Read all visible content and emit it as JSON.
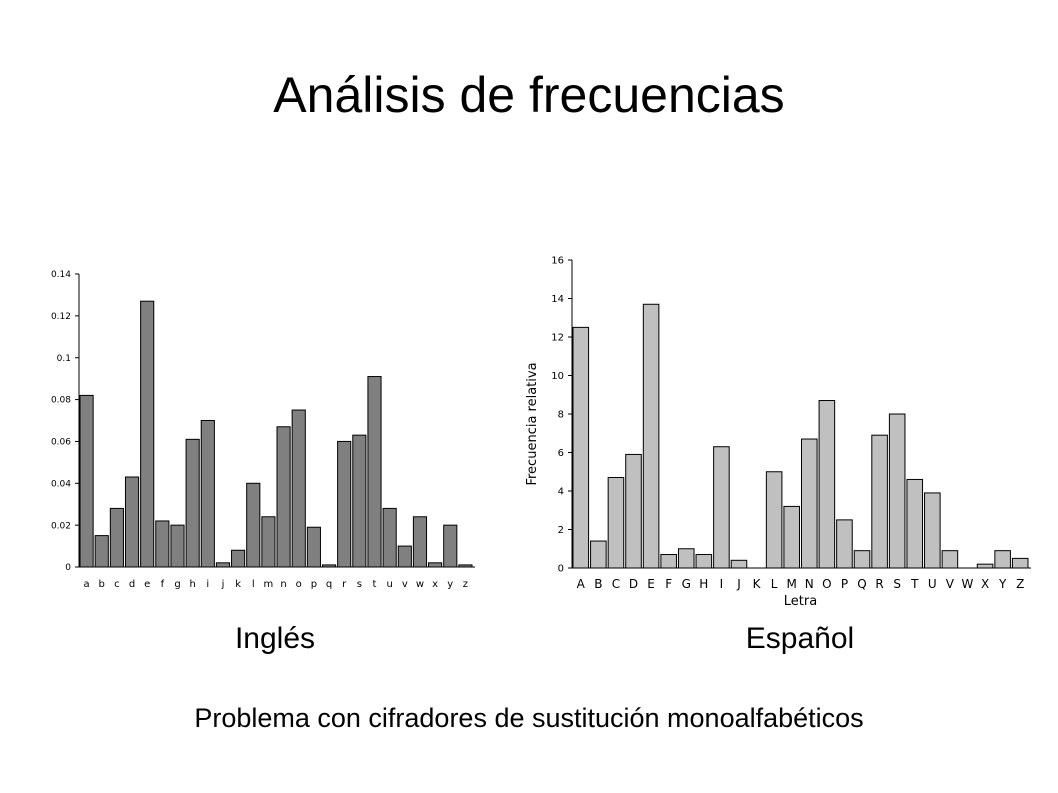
{
  "slide": {
    "title": "Análisis de frecuencias",
    "subtitle": "Problema con cifradores de sustitución monoalfabéticos"
  },
  "chart_data": [
    {
      "type": "bar",
      "caption": "Inglés",
      "xlabel": "",
      "ylabel": "",
      "categories": [
        "a",
        "b",
        "c",
        "d",
        "e",
        "f",
        "g",
        "h",
        "i",
        "j",
        "k",
        "l",
        "m",
        "n",
        "o",
        "p",
        "q",
        "r",
        "s",
        "t",
        "u",
        "v",
        "w",
        "x",
        "y",
        "z"
      ],
      "values": [
        0.082,
        0.015,
        0.028,
        0.043,
        0.127,
        0.022,
        0.02,
        0.061,
        0.07,
        0.002,
        0.008,
        0.04,
        0.024,
        0.067,
        0.075,
        0.019,
        0.001,
        0.06,
        0.063,
        0.091,
        0.028,
        0.01,
        0.024,
        0.002,
        0.02,
        0.001
      ],
      "yticks": [
        "0",
        "0.02",
        "0.04",
        "0.06",
        "0.08",
        "0.1",
        "0.12",
        "0.14"
      ],
      "ylim": [
        0,
        0.14
      ],
      "grid": false,
      "bar_color": "#808080"
    },
    {
      "type": "bar",
      "caption": "Español",
      "xlabel": "Letra",
      "ylabel": "Frecuencia relativa",
      "categories": [
        "A",
        "B",
        "C",
        "D",
        "E",
        "F",
        "G",
        "H",
        "I",
        "J",
        "K",
        "L",
        "M",
        "N",
        "O",
        "P",
        "Q",
        "R",
        "S",
        "T",
        "U",
        "V",
        "W",
        "X",
        "Y",
        "Z"
      ],
      "values": [
        12.5,
        1.4,
        4.7,
        5.9,
        13.7,
        0.7,
        1.0,
        0.7,
        6.3,
        0.4,
        0.0,
        5.0,
        3.2,
        6.7,
        8.7,
        2.5,
        0.9,
        6.9,
        8.0,
        4.6,
        3.9,
        0.9,
        0.0,
        0.2,
        0.9,
        0.5
      ],
      "yticks": [
        "0",
        "2",
        "4",
        "6",
        "8",
        "10",
        "12",
        "14",
        "16"
      ],
      "ylim": [
        0,
        16
      ],
      "grid": false,
      "bar_color": "#c0c0c0"
    }
  ]
}
